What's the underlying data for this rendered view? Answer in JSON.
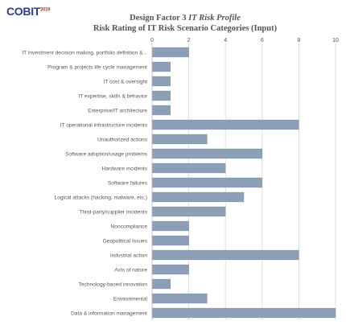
{
  "logo": {
    "text": "COBIT",
    "year": "2019"
  },
  "title_line1_prefix": "Design Factor  3 ",
  "title_line1_italic": "IT Risk Profile",
  "title_line2": "Risk Rating  of IT  Risk Scenario Categories (Input)",
  "colors": {
    "bar": "#8c9fb6",
    "bar_edge": "#7b8ea8",
    "grid": "#d9d9d9",
    "text": "#555555",
    "logo": "#2d3f8c"
  },
  "chart_data": {
    "type": "bar",
    "orientation": "horizontal",
    "title": "Design Factor 3 IT Risk Profile — Risk Rating of IT Risk Scenario Categories (Input)",
    "xlabel": "",
    "ylabel": "",
    "xlim": [
      0,
      10
    ],
    "xticks": [
      0,
      2,
      4,
      6,
      8,
      10
    ],
    "grid": true,
    "categories": [
      "IT investment decision making, portfolio definition &...",
      "Program & projects life cycle management",
      "IT cost & oversight",
      "IT expertise, skills & behavior",
      "Enterprise/IT architecture",
      "IT operational infrastructure incidents",
      "Unauthorized actions",
      "Software adoption/usage problems",
      "Hardware incidents",
      "Software failures",
      "Logical attacks (hacking, malware, etc.)",
      "Third-party/supplier incidents",
      "Noncompliance",
      "Geopolitical Issues",
      "Industrial action",
      "Acts of nature",
      "Technology-based innovation",
      "Environmental",
      "Data & information management"
    ],
    "values": [
      2,
      1,
      1,
      1,
      1,
      8,
      3,
      6,
      4,
      6,
      5,
      4,
      2,
      2,
      8,
      2,
      1,
      3,
      10
    ]
  }
}
